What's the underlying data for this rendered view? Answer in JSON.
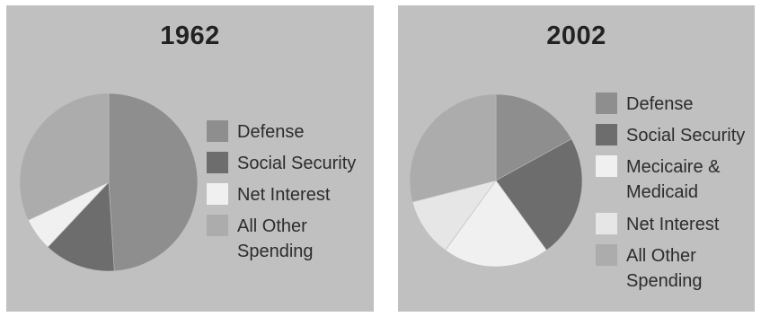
{
  "chart_data": [
    {
      "type": "pie",
      "title": "1962",
      "categories": [
        "Defense",
        "Social Security",
        "Net Interest",
        "All Other Spending"
      ],
      "values": [
        49,
        13,
        6,
        32
      ],
      "legend_labels": [
        [
          "Defense"
        ],
        [
          "Social Security"
        ],
        [
          "Net Interest"
        ],
        [
          "All Other",
          "Spending"
        ]
      ],
      "colors": [
        "#8e8e8e",
        "#6d6d6d",
        "#f0f0f0",
        "#acacac"
      ],
      "legend_placement": "right"
    },
    {
      "type": "pie",
      "title": "2002",
      "categories": [
        "Defense",
        "Social Security",
        "Medicare & Medicaid",
        "Net Interest",
        "All Other Spending"
      ],
      "values": [
        17,
        23,
        20,
        11,
        29
      ],
      "legend_labels": [
        [
          "Defense"
        ],
        [
          "Social Security"
        ],
        [
          "Mecicaire &",
          "Medicaid"
        ],
        [
          "Net Interest"
        ],
        [
          "All Other",
          "Spending"
        ]
      ],
      "colors": [
        "#8e8e8e",
        "#6d6d6d",
        "#f0f0f0",
        "#e6e6e6",
        "#acacac"
      ],
      "legend_placement": "right"
    }
  ]
}
